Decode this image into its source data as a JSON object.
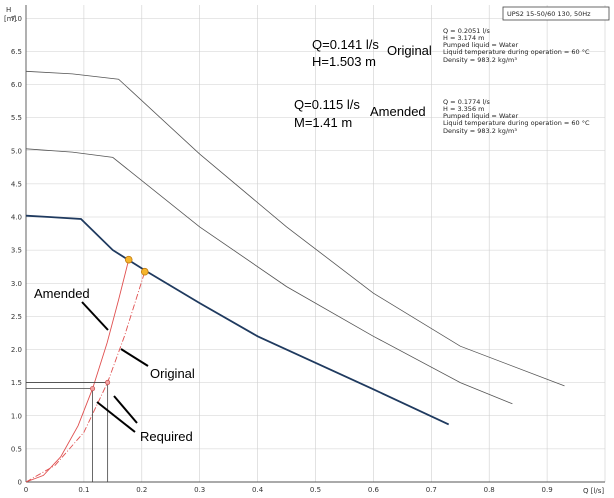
{
  "chart_data": {
    "type": "line",
    "title": "UPS2 15-50/60 130, 50Hz",
    "xlabel": "Q [l/s]",
    "ylabel_top": "H",
    "ylabel_unit": "[m]",
    "xlim": [
      0,
      1.0
    ],
    "ylim": [
      0,
      7.2
    ],
    "x_ticks": [
      "0",
      "0.1",
      "0.2",
      "0.3",
      "0.4",
      "0.5",
      "0.6",
      "0.7",
      "0.8",
      "0.9"
    ],
    "y_ticks": [
      "0",
      "0.5",
      "1.0",
      "1.5",
      "2.0",
      "2.5",
      "3.0",
      "3.5",
      "4.0",
      "4.5",
      "5.0",
      "5.5",
      "6.0",
      "6.5",
      "7.0"
    ],
    "x_unit_label": "Q [l/s]",
    "series": [
      {
        "name": "pump-curve-high",
        "color": "#555555",
        "x": [
          0,
          0.08,
          0.16,
          0.3,
          0.45,
          0.6,
          0.75,
          0.93
        ],
        "y": [
          6.2,
          6.16,
          6.08,
          4.95,
          3.85,
          2.85,
          2.05,
          1.45
        ]
      },
      {
        "name": "pump-curve-mid",
        "color": "#555555",
        "x": [
          0,
          0.08,
          0.15,
          0.3,
          0.45,
          0.6,
          0.75,
          0.84
        ],
        "y": [
          5.03,
          4.98,
          4.9,
          3.85,
          2.95,
          2.2,
          1.5,
          1.18
        ]
      },
      {
        "name": "pump-curve-low",
        "color": "#1f3a5f",
        "x": [
          0,
          0.04,
          0.095,
          0.15,
          0.21,
          0.3,
          0.4,
          0.5,
          0.6,
          0.73
        ],
        "y": [
          4.02,
          4.0,
          3.97,
          3.5,
          3.17,
          2.7,
          2.2,
          1.8,
          1.4,
          0.87
        ]
      },
      {
        "name": "system-curve-amended",
        "color": "#e05050",
        "x": [
          0,
          0.03,
          0.06,
          0.09,
          0.115,
          0.14,
          0.16,
          0.1774
        ],
        "y": [
          0,
          0.1,
          0.38,
          0.85,
          1.41,
          2.1,
          2.75,
          3.356
        ]
      },
      {
        "name": "system-curve-original",
        "color": "#e05050",
        "x": [
          0,
          0.05,
          0.1,
          0.141,
          0.17,
          0.2051
        ],
        "y": [
          0,
          0.25,
          0.75,
          1.503,
          2.2,
          3.174
        ]
      }
    ],
    "operating_points": [
      {
        "name": "amended-duty-point",
        "x": 0.1774,
        "y": 3.356
      },
      {
        "name": "original-duty-point",
        "x": 0.2051,
        "y": 3.174
      }
    ],
    "required_points": [
      {
        "name": "required-amended",
        "x": 0.115,
        "y": 1.41
      },
      {
        "name": "required-original",
        "x": 0.141,
        "y": 1.503
      }
    ],
    "info_blocks": [
      {
        "name": "info-original",
        "lines": [
          "Q = 0.2051 l/s",
          "H = 3.174 m",
          "Pumped liquid = Water",
          "Liquid temperature during operation = 60 °C",
          "Density = 983.2 kg/m³"
        ]
      },
      {
        "name": "info-amended",
        "lines": [
          "Q = 0.1774 l/s",
          "H = 3.356 m",
          "Pumped liquid = Water",
          "Liquid temperature during operation = 60 °C",
          "Density = 983.2 kg/m³"
        ]
      }
    ],
    "annotations": {
      "original_q": "Q=0.141 l/s",
      "original_h": "H=1.503 m",
      "original_word": "Original",
      "amended_q": "Q=0.115 l/s",
      "amended_h": "M=1.41 m",
      "amended_word": "Amended",
      "label_amended": "Amended",
      "label_original": "Original",
      "label_required": "Required"
    }
  }
}
